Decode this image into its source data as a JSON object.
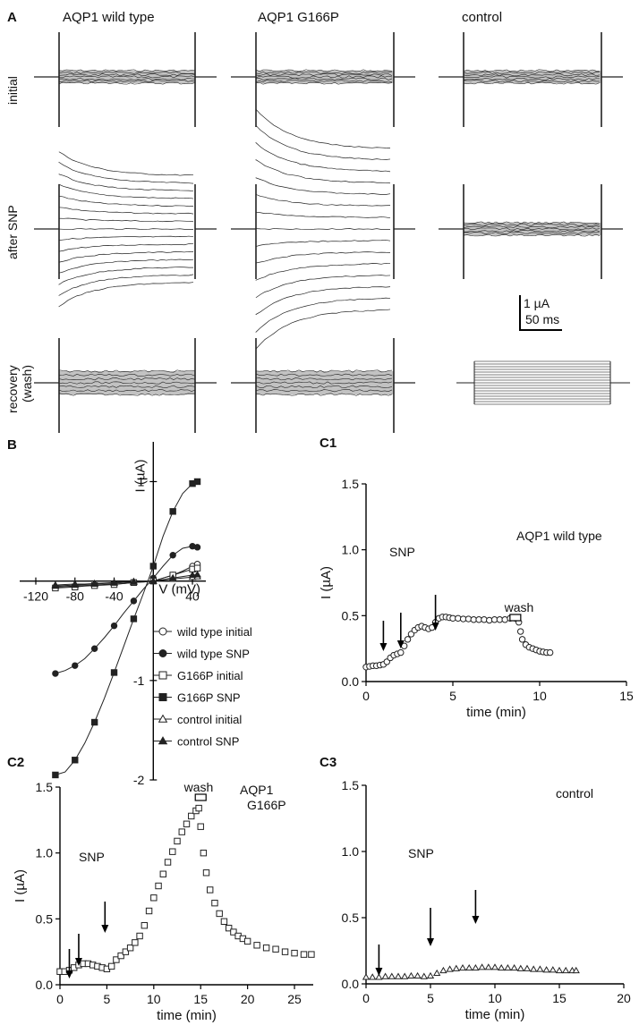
{
  "panel_A": {
    "letter": "A",
    "columns": [
      "AQP1 wild type",
      "AQP1 G166P",
      "control"
    ],
    "rows": [
      "initial",
      "after SNP",
      "recovery (wash)"
    ],
    "scale_bar": {
      "current": "1 µA",
      "time": "50 ms"
    }
  },
  "colors": {
    "trace": "#222222",
    "axis": "#000000",
    "background": "#ffffff"
  },
  "chart_data": [
    {
      "id": "B",
      "type": "line",
      "panel_label": "B",
      "xlabel": "V (mV)",
      "ylabel": "I (µA)",
      "xlim": [
        -120,
        50
      ],
      "ylim": [
        -2,
        1.4
      ],
      "xticks": [
        -120,
        -80,
        -40,
        40
      ],
      "yticks": [
        -2,
        -1,
        1
      ],
      "x": [
        -100,
        -90,
        -80,
        -70,
        -60,
        -50,
        -40,
        -30,
        -20,
        -10,
        0,
        10,
        20,
        30,
        40,
        45
      ],
      "legend_position": "bottom-right",
      "series": [
        {
          "name": "wild type initial",
          "marker": "circle-open",
          "values": [
            -0.06,
            -0.055,
            -0.05,
            -0.045,
            -0.04,
            -0.035,
            -0.03,
            -0.025,
            -0.015,
            -0.005,
            0,
            0.03,
            0.06,
            0.1,
            0.15,
            0.17
          ]
        },
        {
          "name": "wild type SNP",
          "marker": "circle-filled",
          "values": [
            -0.93,
            -0.9,
            -0.85,
            -0.78,
            -0.68,
            -0.57,
            -0.45,
            -0.32,
            -0.2,
            -0.08,
            0.03,
            0.15,
            0.26,
            0.33,
            0.35,
            0.34
          ]
        },
        {
          "name": "G166P initial",
          "marker": "square-open",
          "values": [
            -0.07,
            -0.065,
            -0.06,
            -0.05,
            -0.045,
            -0.04,
            -0.035,
            -0.025,
            -0.015,
            -0.01,
            0,
            0.03,
            0.06,
            0.09,
            0.12,
            0.13
          ]
        },
        {
          "name": "G166P SNP",
          "marker": "square-filled",
          "values": [
            -1.95,
            -1.92,
            -1.8,
            -1.63,
            -1.42,
            -1.18,
            -0.92,
            -0.65,
            -0.38,
            -0.12,
            0.15,
            0.45,
            0.7,
            0.88,
            0.98,
            1.0
          ]
        },
        {
          "name": "control initial",
          "marker": "triangle-open",
          "values": [
            -0.04,
            -0.035,
            -0.03,
            -0.03,
            -0.025,
            -0.02,
            -0.015,
            -0.01,
            -0.005,
            0,
            0,
            0.01,
            0.02,
            0.03,
            0.04,
            0.045
          ]
        },
        {
          "name": "control SNP",
          "marker": "triangle-filled",
          "values": [
            -0.05,
            -0.045,
            -0.04,
            -0.035,
            -0.03,
            -0.025,
            -0.02,
            -0.015,
            -0.01,
            -0.005,
            0,
            0.015,
            0.03,
            0.045,
            0.06,
            0.065
          ]
        }
      ]
    },
    {
      "id": "C1",
      "type": "scatter",
      "panel_label": "C1",
      "title": "AQP1 wild type",
      "xlabel": "time (min)",
      "ylabel": "I (µA)",
      "xlim": [
        0,
        15
      ],
      "ylim": [
        0,
        1.5
      ],
      "xticks": [
        0,
        5,
        10,
        15
      ],
      "yticks": [
        0.0,
        0.5,
        1.0,
        1.5
      ],
      "marker": "circle-open",
      "points": [
        [
          0,
          0.11
        ],
        [
          0.2,
          0.115
        ],
        [
          0.4,
          0.12
        ],
        [
          0.6,
          0.12
        ],
        [
          0.8,
          0.125
        ],
        [
          1.0,
          0.13
        ],
        [
          1.2,
          0.15
        ],
        [
          1.4,
          0.18
        ],
        [
          1.6,
          0.2
        ],
        [
          1.8,
          0.21
        ],
        [
          2.0,
          0.22
        ],
        [
          2.2,
          0.27
        ],
        [
          2.4,
          0.32
        ],
        [
          2.6,
          0.36
        ],
        [
          2.8,
          0.39
        ],
        [
          3.0,
          0.41
        ],
        [
          3.2,
          0.42
        ],
        [
          3.4,
          0.41
        ],
        [
          3.6,
          0.4
        ],
        [
          3.8,
          0.41
        ],
        [
          4.0,
          0.45
        ],
        [
          4.2,
          0.48
        ],
        [
          4.4,
          0.49
        ],
        [
          4.6,
          0.49
        ],
        [
          4.8,
          0.485
        ],
        [
          5.0,
          0.48
        ],
        [
          5.3,
          0.48
        ],
        [
          5.6,
          0.475
        ],
        [
          5.9,
          0.475
        ],
        [
          6.2,
          0.47
        ],
        [
          6.5,
          0.47
        ],
        [
          6.8,
          0.47
        ],
        [
          7.1,
          0.465
        ],
        [
          7.4,
          0.47
        ],
        [
          7.7,
          0.47
        ],
        [
          8.0,
          0.47
        ],
        [
          8.3,
          0.48
        ],
        [
          8.6,
          0.48
        ],
        [
          8.8,
          0.45
        ],
        [
          8.9,
          0.38
        ],
        [
          9.0,
          0.32
        ],
        [
          9.2,
          0.28
        ],
        [
          9.4,
          0.26
        ],
        [
          9.6,
          0.25
        ],
        [
          9.8,
          0.24
        ],
        [
          10.0,
          0.23
        ],
        [
          10.2,
          0.225
        ],
        [
          10.4,
          0.22
        ],
        [
          10.6,
          0.22
        ]
      ],
      "annotations": {
        "snp_label": "SNP",
        "wash_label": "wash",
        "arrows_x": [
          1.0,
          2.0,
          4.0
        ],
        "wash_x": 8.6
      }
    },
    {
      "id": "C2",
      "type": "scatter",
      "panel_label": "C2",
      "title": "AQP1 G166P",
      "xlabel": "time (min)",
      "ylabel": "I (µA)",
      "xlim": [
        0,
        27
      ],
      "ylim": [
        0,
        1.5
      ],
      "xticks": [
        0,
        5,
        10,
        15,
        20,
        25
      ],
      "yticks": [
        0.0,
        0.5,
        1.0,
        1.5
      ],
      "marker": "square-open",
      "points": [
        [
          0,
          0.1
        ],
        [
          0.5,
          0.1
        ],
        [
          1.0,
          0.11
        ],
        [
          1.5,
          0.13
        ],
        [
          2.0,
          0.15
        ],
        [
          2.5,
          0.16
        ],
        [
          3.0,
          0.16
        ],
        [
          3.5,
          0.15
        ],
        [
          4.0,
          0.14
        ],
        [
          4.5,
          0.13
        ],
        [
          5.0,
          0.12
        ],
        [
          5.5,
          0.14
        ],
        [
          6.0,
          0.19
        ],
        [
          6.5,
          0.22
        ],
        [
          7.0,
          0.25
        ],
        [
          7.5,
          0.28
        ],
        [
          8.0,
          0.32
        ],
        [
          8.5,
          0.37
        ],
        [
          9.0,
          0.45
        ],
        [
          9.5,
          0.56
        ],
        [
          10.0,
          0.66
        ],
        [
          10.5,
          0.75
        ],
        [
          11.0,
          0.84
        ],
        [
          11.5,
          0.93
        ],
        [
          12.0,
          1.01
        ],
        [
          12.5,
          1.09
        ],
        [
          13.0,
          1.16
        ],
        [
          13.5,
          1.22
        ],
        [
          14.0,
          1.28
        ],
        [
          14.5,
          1.32
        ],
        [
          14.8,
          1.34
        ],
        [
          15.0,
          1.2
        ],
        [
          15.3,
          1.0
        ],
        [
          15.6,
          0.85
        ],
        [
          16.0,
          0.72
        ],
        [
          16.5,
          0.62
        ],
        [
          17.0,
          0.54
        ],
        [
          17.5,
          0.48
        ],
        [
          18.0,
          0.43
        ],
        [
          18.5,
          0.4
        ],
        [
          19.0,
          0.37
        ],
        [
          19.5,
          0.35
        ],
        [
          20.0,
          0.33
        ],
        [
          21.0,
          0.3
        ],
        [
          22.0,
          0.28
        ],
        [
          23.0,
          0.27
        ],
        [
          24.0,
          0.25
        ],
        [
          25.0,
          0.24
        ],
        [
          26.0,
          0.23
        ],
        [
          26.8,
          0.23
        ]
      ],
      "annotations": {
        "snp_label": "SNP",
        "wash_label": "wash",
        "arrows_x": [
          1.0,
          2.0,
          4.8
        ],
        "wash_x": 15.0
      }
    },
    {
      "id": "C3",
      "type": "scatter",
      "panel_label": "C3",
      "title": "control",
      "xlabel": "time (min)",
      "ylabel": "",
      "xlim": [
        0,
        20
      ],
      "ylim": [
        0,
        1.5
      ],
      "xticks": [
        0,
        5,
        10,
        15,
        20
      ],
      "yticks": [
        0.0,
        0.5,
        1.0,
        1.5
      ],
      "marker": "triangle-open",
      "points": [
        [
          0,
          0.05
        ],
        [
          0.5,
          0.05
        ],
        [
          1.0,
          0.05
        ],
        [
          1.5,
          0.055
        ],
        [
          2.0,
          0.055
        ],
        [
          2.5,
          0.055
        ],
        [
          3.0,
          0.055
        ],
        [
          3.5,
          0.06
        ],
        [
          4.0,
          0.06
        ],
        [
          4.5,
          0.055
        ],
        [
          5.0,
          0.06
        ],
        [
          5.5,
          0.08
        ],
        [
          6.0,
          0.1
        ],
        [
          6.5,
          0.11
        ],
        [
          7.0,
          0.115
        ],
        [
          7.5,
          0.12
        ],
        [
          8.0,
          0.12
        ],
        [
          8.5,
          0.12
        ],
        [
          9.0,
          0.125
        ],
        [
          9.5,
          0.125
        ],
        [
          10.0,
          0.125
        ],
        [
          10.5,
          0.12
        ],
        [
          11.0,
          0.12
        ],
        [
          11.5,
          0.12
        ],
        [
          12.0,
          0.115
        ],
        [
          12.5,
          0.115
        ],
        [
          13.0,
          0.11
        ],
        [
          13.5,
          0.11
        ],
        [
          14.0,
          0.105
        ],
        [
          14.5,
          0.105
        ],
        [
          15.0,
          0.1
        ],
        [
          15.5,
          0.1
        ],
        [
          16.0,
          0.1
        ],
        [
          16.3,
          0.1
        ]
      ],
      "annotations": {
        "snp_label": "SNP",
        "arrows_x": [
          1.0,
          5.0,
          8.5
        ]
      }
    }
  ]
}
